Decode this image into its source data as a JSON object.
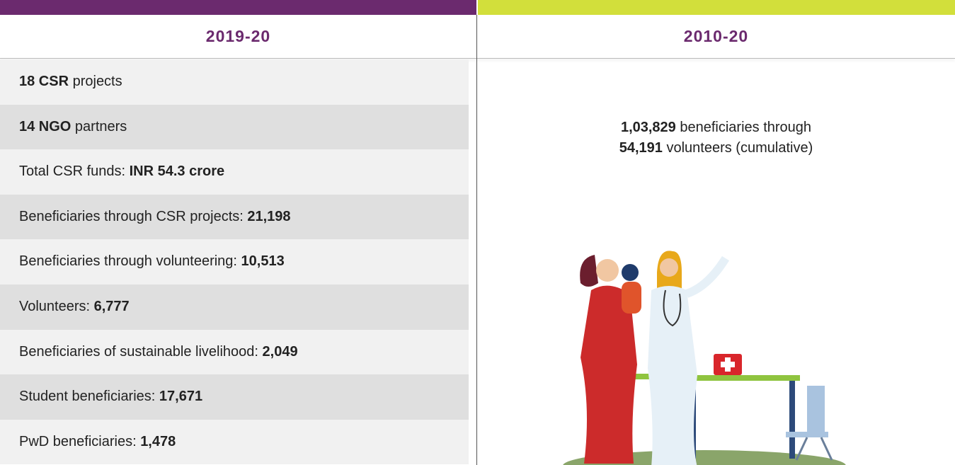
{
  "left": {
    "heading": "2019-20",
    "rows": [
      [
        {
          "text": "18 CSR",
          "bold": true
        },
        {
          "text": " projects",
          "bold": false
        }
      ],
      [
        {
          "text": "14 NGO",
          "bold": true
        },
        {
          "text": " partners",
          "bold": false
        }
      ],
      [
        {
          "text": "Total CSR funds: ",
          "bold": false
        },
        {
          "text": "INR 54.3 crore",
          "bold": true
        }
      ],
      [
        {
          "text": "Beneficiaries through CSR projects: ",
          "bold": false
        },
        {
          "text": "21,198",
          "bold": true
        }
      ],
      [
        {
          "text": "Beneficiaries through volunteering: ",
          "bold": false
        },
        {
          "text": "10,513",
          "bold": true
        }
      ],
      [
        {
          "text": "Volunteers: ",
          "bold": false
        },
        {
          "text": "6,777",
          "bold": true
        }
      ],
      [
        {
          "text": "Beneficiaries of sustainable livelihood: ",
          "bold": false
        },
        {
          "text": "2,049",
          "bold": true
        }
      ],
      [
        {
          "text": "Student beneficiaries: ",
          "bold": false
        },
        {
          "text": "17,671",
          "bold": true
        }
      ],
      [
        {
          "text": "PwD beneficiaries: ",
          "bold": false
        },
        {
          "text": "1,478",
          "bold": true
        }
      ]
    ]
  },
  "right": {
    "heading": "2010-20",
    "lines": [
      [
        {
          "text": "1,03,829",
          "bold": true
        },
        {
          "text": " beneficiaries through",
          "bold": false
        }
      ],
      [
        {
          "text": "54,191",
          "bold": true
        },
        {
          "text": " volunteers (cumulative)",
          "bold": false
        }
      ]
    ]
  }
}
